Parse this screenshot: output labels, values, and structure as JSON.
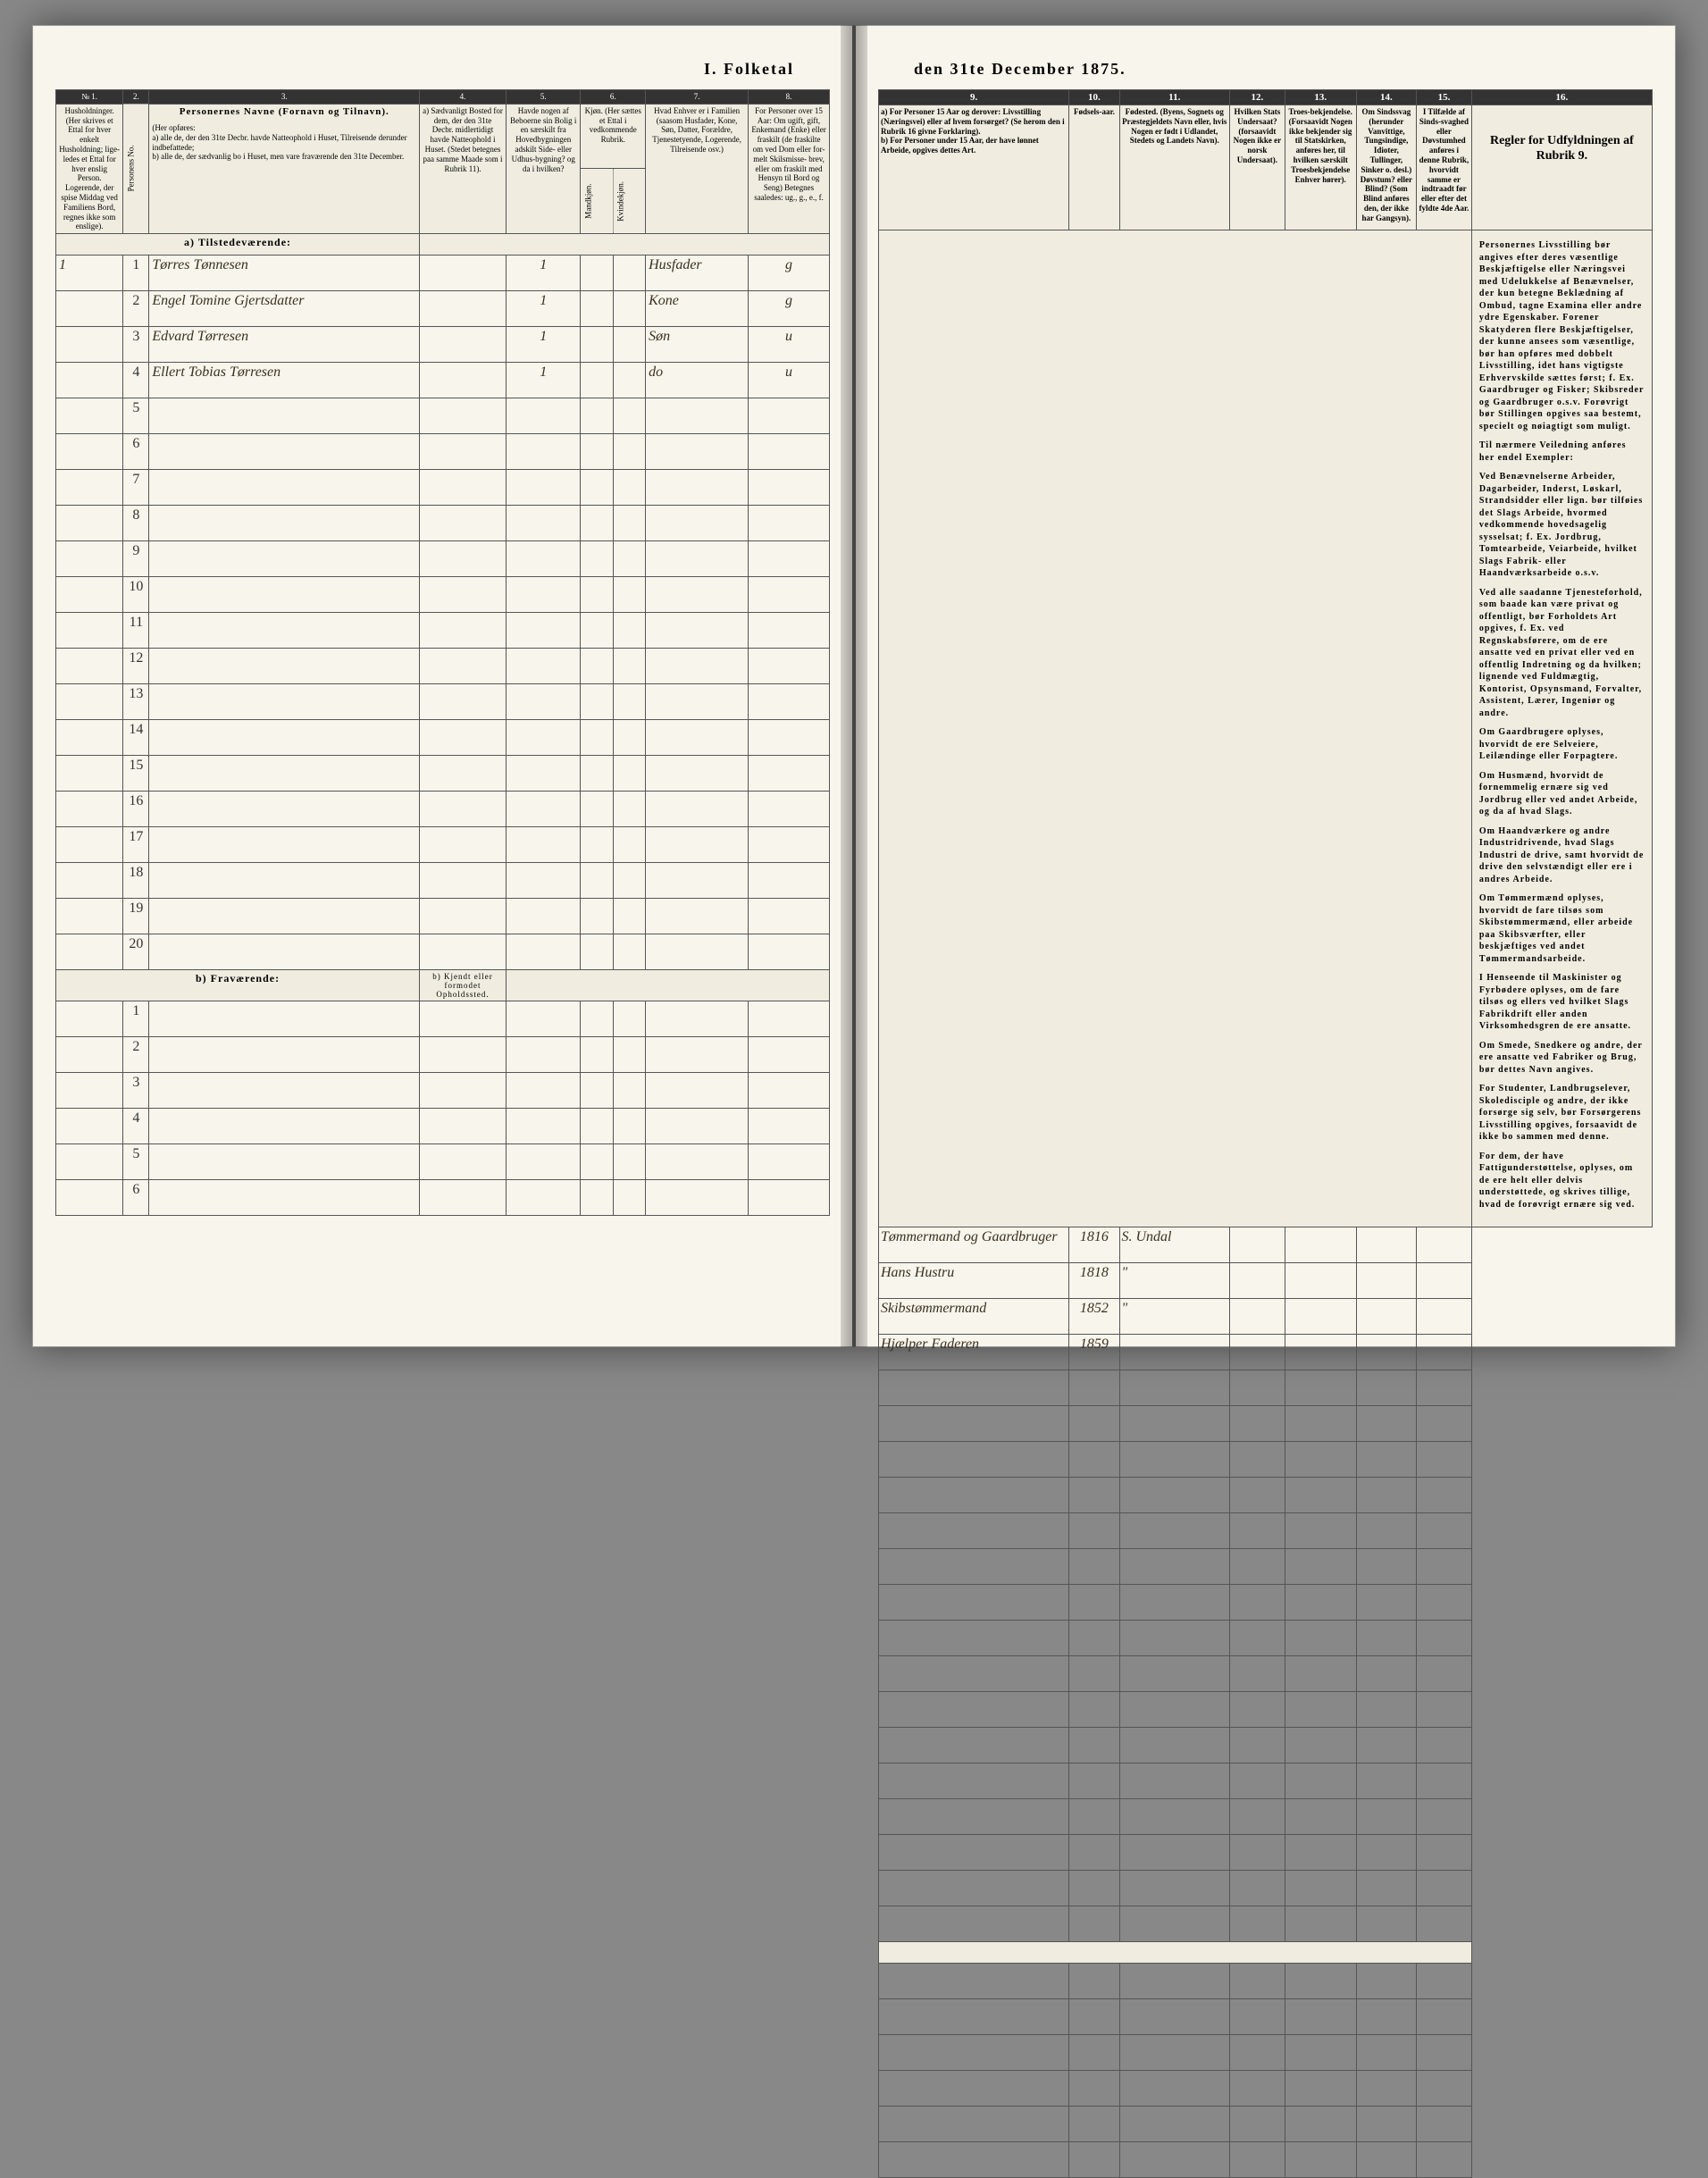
{
  "title_left": "I. Folketal",
  "title_right": "den 31te December 1875.",
  "left_cols": {
    "c1_num": "№ 1.",
    "c2_num": "2.",
    "c3_num": "3.",
    "c4_num": "4.",
    "c5_num": "5.",
    "c6_num": "6.",
    "c7_num": "7.",
    "c8_num": "8.",
    "c1": "Husholdninger. (Her skrives et Ettal for hver enkelt Husholdning; lige-ledes et Ettal for hver enslig Person. Logerende, der spise Middag ved Familiens Bord, regnes ikke som enslige).",
    "c2": "Personens No.",
    "c3_title": "Personernes Navne (Fornavn og Tilnavn).",
    "c3_sub": "(Her opføres:\na) alle de, der den 31te Decbr. havde Natteophold i Huset, Tilreisende derunder indbefattede;\nb) alle de, der sædvanlig bo i Huset, men vare fraværende den 31te December.",
    "c4": "a) Sædvanligt Bosted for dem, der den 31te Decbr. midlertidigt havde Natteophold i Huset. (Stedet betegnes paa samme Maade som i Rubrik 11).",
    "c5": "Havde nogen af Beboerne sin Bolig i en særskilt fra Hovedbygningen adskilt Side- eller Udhus-bygning? og da i hvilken?",
    "c6_a": "Mandkjøn.",
    "c6_b": "Kvindekjøn.",
    "c6_top": "Kjøn. (Her sættes et Ettal i vedkommende Rubrik.",
    "c7": "Hvad Enhver er i Familien (saasom Husfader, Kone, Søn, Datter, Forældre, Tjenestetyende, Logerende, Tilreisende osv.)",
    "c8": "For Personer over 15 Aar: Om ugift, gift, Enkemand (Enke) eller fraskilt (de fraskilte om ved Dom eller for- melt Skilsmisse- brev, eller om fraskilt med Hensyn til Bord og Seng) Betegnes saaledes: ug., g., e., f."
  },
  "right_cols": {
    "c9_num": "9.",
    "c10_num": "10.",
    "c11_num": "11.",
    "c12_num": "12.",
    "c13_num": "13.",
    "c14_num": "14.",
    "c15_num": "15.",
    "c16_num": "16.",
    "c9": "a) For Personer 15 Aar og derover: Livsstilling (Næringsvei) eller af hvem forsørget? (Se herom den i Rubrik 16 givne Forklaring).\nb) For Personer under 15 Aar, der have lønnet Arbeide, opgives dettes Art.",
    "c10": "Fødsels-aar.",
    "c11": "Fødested. (Byens, Sognets og Præstegjeldets Navn eller, hvis Nogen er født i Udlandet, Stedets og Landets Navn).",
    "c12": "Hvilken Stats Undersaat? (forsaavidt Nogen ikke er norsk Undersaat).",
    "c13": "Troes-bekjendelse. (Forsaavidt Nogen ikke bekjender sig til Statskirken, anføres her, til hvilken særskilt Troesbekjendelse Enhver hører).",
    "c14": "Om Sindssvag (herunder Vanvittige, Tungsindige, Idioter, Tullinger, Sinker o. desl.) Døvstum? eller Blind? (Som Blind anføres den, der ikke har Gangsyn).",
    "c15": "I Tilfælde af Sinds-svaghed eller Døvstumhed anføres i denne Rubrik, hvorvidt samme er indtraadt før eller efter det fyldte 4de Aar.",
    "c16_head": "Regler for Udfyldningen af Rubrik 9."
  },
  "section_a": "a) Tilstedeværende:",
  "section_b": "b) Fraværende:",
  "section_b_col4": "b) Kjendt eller formodet Opholdssted.",
  "entries": [
    {
      "hh": "1",
      "no": "1",
      "name": "Tørres Tønnesen",
      "col5": "1",
      "rel": "Husfader",
      "stat": "g",
      "occ": "Tømmermand og Gaardbruger",
      "year": "1816",
      "place": "S. Undal"
    },
    {
      "hh": "",
      "no": "2",
      "name": "Engel Tomine Gjertsdatter",
      "col5": "1",
      "rel": "Kone",
      "stat": "g",
      "occ": "Hans Hustru",
      "year": "1818",
      "place": "\""
    },
    {
      "hh": "",
      "no": "3",
      "name": "Edvard Tørresen",
      "col5": "1",
      "rel": "Søn",
      "stat": "u",
      "occ": "Skibstømmermand",
      "year": "1852",
      "place": "\""
    },
    {
      "hh": "",
      "no": "4",
      "name": "Ellert Tobias Tørresen",
      "col5": "1",
      "rel": "do",
      "stat": "u",
      "occ": "Hjælper Faderen",
      "year": "1859",
      "place": ""
    }
  ],
  "blank_rows_a": [
    "5",
    "6",
    "7",
    "8",
    "9",
    "10",
    "11",
    "12",
    "13",
    "14",
    "15",
    "16",
    "17",
    "18",
    "19",
    "20"
  ],
  "blank_rows_b": [
    "1",
    "2",
    "3",
    "4",
    "5",
    "6"
  ],
  "regler": {
    "p1": "Personernes Livsstilling bør angives efter deres væsentlige Beskjæftigelse eller Næringsvei med Udelukkelse af Benævnelser, der kun betegne Beklædning af Ombud, tagne Examina eller andre ydre Egenskaber. Forener Skatyderen flere Beskjæftigelser, der kunne ansees som væsentlige, bør han opføres med dobbelt Livsstilling, idet hans vigtigste Erhvervskilde sættes først; f. Ex. Gaardbruger og Fisker; Skibsreder og Gaardbruger o.s.v. Forøvrigt bør Stillingen opgives saa bestemt, specielt og nøiagtigt som muligt.",
    "p2": "Til nærmere Veiledning anføres her endel Exempler:",
    "p3": "Ved Benævnelserne Arbeider, Dagarbeider, Inderst, Løskarl, Strandsidder eller lign. bør tilføies det Slags Arbeide, hvormed vedkommende hovedsagelig sysselsat; f. Ex. Jordbrug, Tomtearbeide, Veiarbeide, hvilket Slags Fabrik- eller Haandværksarbeide o.s.v.",
    "p4": "Ved alle saadanne Tjenesteforhold, som baade kan være privat og offentligt, bør Forholdets Art opgives, f. Ex. ved Regnskabsførere, om de ere ansatte ved en privat eller ved en offentlig Indretning og da hvilken; lignende ved Fuldmægtig, Kontorist, Opsynsmand, Forvalter, Assistent, Lærer, Ingeniør og andre.",
    "p5": "Om Gaardbrugere oplyses, hvorvidt de ere Selveiere, Leilændinge eller Forpagtere.",
    "p6": "Om Husmænd, hvorvidt de fornemmelig ernære sig ved Jordbrug eller ved andet Arbeide, og da af hvad Slags.",
    "p7": "Om Haandværkere og andre Industridrivende, hvad Slags Industri de drive, samt hvorvidt de drive den selvstændigt eller ere i andres Arbeide.",
    "p8": "Om Tømmermænd oplyses, hvorvidt de fare tilsøs som Skibstømmermænd, eller arbeide paa Skibsværfter, eller beskjæftiges ved andet Tømmermandsarbeide.",
    "p9": "I Henseende til Maskinister og Fyrbødere oplyses, om de fare tilsøs og ellers ved hvilket Slags Fabrikdrift eller anden Virksomhedsgren de ere ansatte.",
    "p10": "Om Smede, Snedkere og andre, der ere ansatte ved Fabriker og Brug, bør dettes Navn angives.",
    "p11": "For Studenter, Landbrugselever, Skoledisciple og andre, der ikke forsørge sig selv, bør Forsørgerens Livsstilling opgives, forsaavidt de ikke bo sammen med denne.",
    "p12": "For dem, der have Fattigunderstøttelse, oplyses, om de ere helt eller delvis understøttede, og skrives tillige, hvad de forøvrigt ernære sig ved."
  }
}
